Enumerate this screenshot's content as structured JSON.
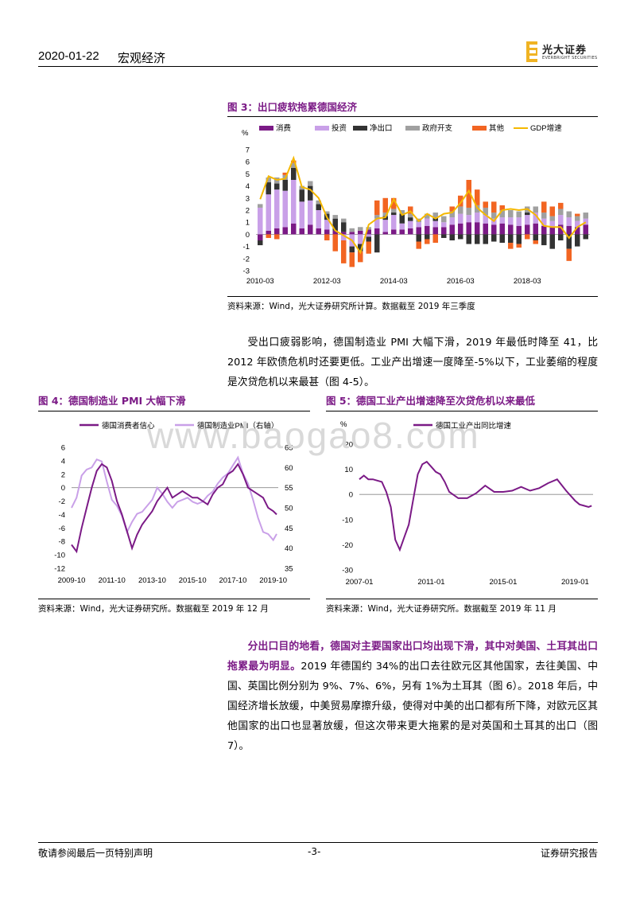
{
  "header": {
    "date": "2020-01-22",
    "category": "宏观经济",
    "logo_cn": "光大证券",
    "logo_en": "EVERBRIGHT SECURITIES"
  },
  "watermark": "www.baogao8.com",
  "fig3": {
    "title": "图 3：出口疲软拖累德国经济",
    "source": "资料来源：Wind，光大证券研究所计算。数据截至 2019 年三季度"
  },
  "para1": "受出口疲弱影响，德国制造业 PMI 大幅下滑，2019 年最低时降至 41，比 2012 年欧债危机时还要更低。工业产出增速一度降至-5%以下，工业萎缩的程度是次贷危机以来最甚（图 4-5）。",
  "fig4": {
    "title": "图 4：德国制造业 PMI 大幅下滑",
    "source": "资料来源：Wind，光大证券研究所。数据截至 2019 年 12 月"
  },
  "fig5": {
    "title": "图 5：德国工业产出增速降至次贷危机以来最低",
    "source": "资料来源：Wind，光大证券研究所。数据截至 2019 年 11 月"
  },
  "para2": {
    "highlight": "分出口目的地看，德国对主要国家出口均出现下滑，其中对美国、土耳其出口拖累最为明显。",
    "rest": "2019 年德国约 34%的出口去往欧元区其他国家，去往美国、中国、英国比例分别为 9%、7%、6%，另有 1%为土耳其（图 6）。2018 年后，中国经济增长放缓，中美贸易摩擦升级，使得对中美的出口都有所下降，对欧元区其他国家的出口也显著放缓，但这次带来更大拖累的是对英国和土耳其的出口（图 7）。"
  },
  "footer": {
    "left": "敬请参阅最后一页特别声明",
    "page": "-3-",
    "right": "证券研究报告"
  },
  "colors": {
    "purple": "#7b1a86",
    "lilac": "#c9a0e8",
    "dark": "#333333",
    "grey": "#a0a0a0",
    "orange": "#f26522",
    "gold": "#f5b800"
  },
  "chart_data": [
    {
      "id": "fig3",
      "type": "bar",
      "stacked": true,
      "ylabel": "%",
      "ylim": [
        -3,
        7
      ],
      "yticks": [
        -3,
        -2,
        -1,
        0,
        1,
        2,
        3,
        4,
        5,
        6,
        7
      ],
      "xtick_labels": [
        "2010-03",
        "2012-03",
        "2014-03",
        "2016-03",
        "2018-03"
      ],
      "xtick_index": [
        0,
        8,
        16,
        24,
        32
      ],
      "legend": [
        "消费",
        "投资",
        "净出口",
        "政府开支",
        "其他",
        "GDP增速"
      ],
      "series": [
        {
          "name": "消费",
          "values": [
            -0.5,
            0.3,
            0.5,
            0.6,
            0.9,
            0.5,
            0.8,
            0.5,
            0.4,
            0.3,
            0.2,
            0.2,
            0.3,
            0.4,
            0.5,
            0.2,
            0.4,
            0.4,
            0.5,
            0.6,
            0.7,
            0.6,
            0.6,
            0.8,
            0.9,
            1.0,
            1.0,
            0.9,
            0.8,
            0.9,
            0.8,
            0.7,
            0.8,
            0.9,
            0.7,
            0.6,
            0.8,
            0.7,
            0.6,
            0.8
          ]
        },
        {
          "name": "投资",
          "values": [
            2.2,
            3.0,
            3.2,
            3.0,
            3.6,
            2.2,
            2.0,
            1.5,
            0.8,
            0.0,
            -0.5,
            -1.0,
            -0.8,
            -0.2,
            0.8,
            1.0,
            1.2,
            0.5,
            0.6,
            0.4,
            0.6,
            0.5,
            0.4,
            0.6,
            0.8,
            0.6,
            0.8,
            0.7,
            0.5,
            0.5,
            0.6,
            0.7,
            0.8,
            0.9,
            0.6,
            0.5,
            0.8,
            0.7,
            0.5,
            0.5
          ]
        },
        {
          "name": "净出口",
          "values": [
            -0.4,
            1.0,
            0.5,
            0.9,
            1.0,
            1.0,
            1.2,
            0.5,
            0.5,
            1.0,
            0.8,
            -0.5,
            -0.6,
            -0.4,
            -1.5,
            0.3,
            0.2,
            0.8,
            0.3,
            -0.6,
            -0.4,
            0.3,
            -0.3,
            -0.5,
            -0.4,
            -0.8,
            -0.8,
            -0.8,
            -0.6,
            -0.7,
            -0.7,
            -0.8,
            0.2,
            -0.5,
            -0.9,
            -1.2,
            -0.5,
            -1.2,
            -1.0,
            -0.4
          ]
        },
        {
          "name": "政府开支",
          "values": [
            0.3,
            0.4,
            0.5,
            0.4,
            0.4,
            0.3,
            0.4,
            0.3,
            0.2,
            0.3,
            0.3,
            0.3,
            0.3,
            0.2,
            0.3,
            0.3,
            0.3,
            0.3,
            0.3,
            0.3,
            0.4,
            0.4,
            0.5,
            0.5,
            0.6,
            0.6,
            0.6,
            0.6,
            0.5,
            0.6,
            0.6,
            0.5,
            0.5,
            0.5,
            0.5,
            0.4,
            0.5,
            0.5,
            0.4,
            0.5
          ]
        },
        {
          "name": "其他",
          "values": [
            0.0,
            -0.3,
            -0.4,
            0.2,
            0.2,
            0.0,
            0.0,
            0.0,
            -0.5,
            -1.4,
            -1.9,
            -1.2,
            -0.9,
            -1.0,
            1.2,
            1.2,
            0.9,
            0.0,
            0.6,
            -0.6,
            -0.4,
            -0.7,
            0.0,
            0.4,
            0.9,
            2.3,
            1.3,
            0.5,
            0.9,
            0.4,
            -0.5,
            -0.3,
            -0.4,
            -0.3,
            0.9,
            0.8,
            0.5,
            -1.0,
            0.2,
            0.0
          ]
        },
        {
          "name": "GDP增速",
          "type": "line",
          "values": [
            2.9,
            4.8,
            4.5,
            4.6,
            6.3,
            3.9,
            3.7,
            3.0,
            1.4,
            0.3,
            -0.1,
            -0.5,
            -1.5,
            0.8,
            1.3,
            1.4,
            2.9,
            1.6,
            1.9,
            1.1,
            1.7,
            1.3,
            1.7,
            1.8,
            2.6,
            3.6,
            2.2,
            1.6,
            1.1,
            2.0,
            2.1,
            2.0,
            2.1,
            1.6,
            0.7,
            0.6,
            0.6,
            -0.3,
            0.6,
            1.0
          ]
        }
      ]
    },
    {
      "id": "fig4",
      "type": "line",
      "xtick_labels": [
        "2009-10",
        "2011-10",
        "2013-10",
        "2015-10",
        "2017-10",
        "2019-10"
      ],
      "yleft_ticks": [
        -12,
        -10,
        -8,
        -6,
        -4,
        -2,
        0,
        2,
        4,
        6
      ],
      "yright_ticks": [
        35,
        40,
        45,
        50,
        55,
        60,
        65
      ],
      "ylim_left": [
        -12,
        6
      ],
      "ylim_right": [
        35,
        65
      ],
      "x_range": [
        2009.75,
        2020.0
      ],
      "series": [
        {
          "name": "德国消费者信心",
          "axis": "left",
          "x": [
            2009.75,
            2010.0,
            2010.25,
            2010.5,
            2010.75,
            2011.0,
            2011.25,
            2011.5,
            2011.75,
            2012.0,
            2012.25,
            2012.5,
            2012.75,
            2013.0,
            2013.25,
            2013.5,
            2013.75,
            2014.0,
            2014.25,
            2014.5,
            2014.75,
            2015.0,
            2015.25,
            2015.5,
            2015.75,
            2016.0,
            2016.25,
            2016.5,
            2016.75,
            2017.0,
            2017.25,
            2017.5,
            2017.75,
            2018.0,
            2018.25,
            2018.5,
            2018.75,
            2019.0,
            2019.25,
            2019.5,
            2019.75,
            2019.92
          ],
          "y": [
            -8.5,
            -9.5,
            -6.0,
            -3.0,
            0.0,
            2.5,
            3.5,
            3.0,
            1.0,
            -2.0,
            -4.0,
            -6.5,
            -9.0,
            -7.0,
            -5.5,
            -4.5,
            -3.5,
            -2.0,
            -1.0,
            0.0,
            -1.5,
            -1.0,
            -0.5,
            -1.0,
            -1.5,
            -1.5,
            -2.0,
            -2.5,
            -1.0,
            0.0,
            0.5,
            2.0,
            2.5,
            3.5,
            2.0,
            0.0,
            -0.5,
            -1.0,
            -1.5,
            -3.0,
            -3.5,
            -4.0
          ]
        },
        {
          "name": "德国制造业PMI（右轴）",
          "axis": "right",
          "x": [
            2009.75,
            2010.0,
            2010.25,
            2010.5,
            2010.75,
            2011.0,
            2011.25,
            2011.5,
            2011.75,
            2012.0,
            2012.25,
            2012.5,
            2012.75,
            2013.0,
            2013.25,
            2013.5,
            2013.75,
            2014.0,
            2014.25,
            2014.5,
            2014.75,
            2015.0,
            2015.25,
            2015.5,
            2015.75,
            2016.0,
            2016.25,
            2016.5,
            2016.75,
            2017.0,
            2017.25,
            2017.5,
            2017.75,
            2018.0,
            2018.25,
            2018.5,
            2018.75,
            2019.0,
            2019.25,
            2019.5,
            2019.75,
            2019.92
          ],
          "y": [
            50.0,
            52.5,
            58.0,
            59.5,
            60.0,
            62.0,
            61.5,
            56.5,
            52.0,
            50.5,
            48.0,
            44.0,
            46.5,
            48.5,
            49.0,
            50.5,
            52.0,
            55.0,
            53.5,
            51.5,
            50.0,
            51.5,
            52.0,
            52.5,
            51.5,
            51.0,
            51.5,
            53.0,
            54.0,
            56.0,
            57.5,
            58.5,
            60.5,
            62.5,
            58.5,
            56.0,
            52.0,
            47.5,
            44.0,
            43.5,
            42.0,
            43.5
          ]
        }
      ]
    },
    {
      "id": "fig5",
      "type": "line",
      "ylabel": "%",
      "yticks": [
        -30,
        -20,
        -10,
        0,
        10,
        20
      ],
      "ylim": [
        -30,
        20
      ],
      "xtick_labels": [
        "2007-01",
        "2011-01",
        "2015-01",
        "2019-01"
      ],
      "x_range": [
        2007.0,
        2020.0
      ],
      "series": [
        {
          "name": "德国工业产出同比增速",
          "x": [
            2007.0,
            2007.25,
            2007.5,
            2007.75,
            2008.0,
            2008.25,
            2008.5,
            2008.75,
            2009.0,
            2009.25,
            2009.5,
            2009.75,
            2010.0,
            2010.25,
            2010.5,
            2010.75,
            2011.0,
            2011.25,
            2011.5,
            2011.75,
            2012.0,
            2012.5,
            2013.0,
            2013.5,
            2014.0,
            2014.5,
            2015.0,
            2015.5,
            2016.0,
            2016.5,
            2017.0,
            2017.5,
            2018.0,
            2018.5,
            2019.0,
            2019.25,
            2019.5,
            2019.75,
            2019.92
          ],
          "y": [
            6.0,
            7.5,
            6.0,
            6.0,
            5.5,
            5.0,
            1.0,
            -5.0,
            -18.0,
            -22.0,
            -17.0,
            -12.0,
            -2.0,
            8.0,
            12.0,
            13.0,
            11.0,
            9.0,
            8.0,
            5.0,
            1.0,
            -1.5,
            -1.5,
            0.5,
            3.5,
            1.0,
            1.0,
            1.5,
            3.0,
            1.5,
            2.5,
            4.5,
            6.0,
            1.5,
            -2.5,
            -4.0,
            -4.5,
            -5.0,
            -4.5
          ]
        }
      ]
    }
  ]
}
